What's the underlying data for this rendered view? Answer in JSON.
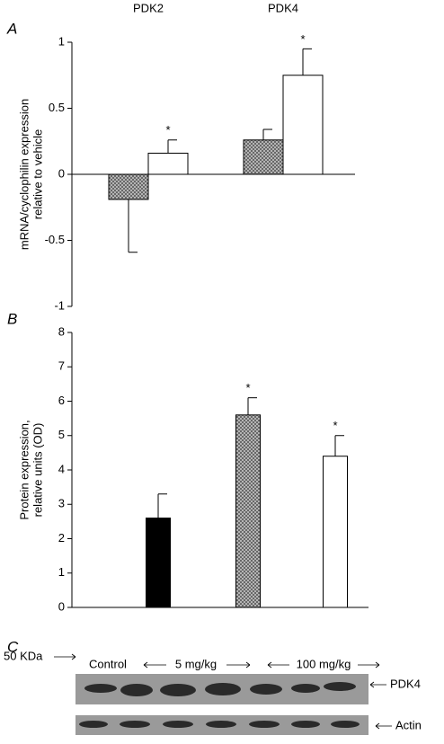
{
  "chart_data": [
    {
      "type": "bar",
      "panel": "A",
      "categories": [
        "PDK2",
        "PDK4"
      ],
      "ylabel": [
        "mRNA/cyclophilin expression",
        "relative to vehicle"
      ],
      "series": [
        {
          "color": "#9a9a9a",
          "pattern": "crosshatch",
          "values": [
            -0.19,
            0.26
          ],
          "errors": [
            0.4,
            0.08
          ]
        },
        {
          "color": "#ffffff",
          "pattern": null,
          "values": [
            0.16,
            0.75
          ],
          "errors": [
            0.1,
            0.2
          ],
          "annotations": [
            "*",
            "*"
          ]
        }
      ],
      "ylim": [
        -1,
        1
      ],
      "yticks": [
        -1,
        -0.5,
        0,
        0.5,
        1
      ]
    },
    {
      "type": "bar",
      "panel": "B",
      "ylabel": [
        "Protein expression,",
        "relative units (OD)"
      ],
      "values": [
        2.6,
        5.6,
        4.4
      ],
      "errors": [
        0.7,
        0.5,
        0.6
      ],
      "colors": [
        "#000000",
        "#9a9a9a",
        "#ffffff"
      ],
      "patterns": [
        null,
        "crosshatch",
        null
      ],
      "annotations": [
        null,
        "*",
        "*"
      ],
      "ylim": [
        0,
        8
      ],
      "yticks": [
        0,
        1,
        2,
        3,
        4,
        5,
        6,
        7,
        8
      ]
    }
  ],
  "blot": {
    "panel": "C",
    "lanes": [
      "Control",
      "5 mg/kg",
      "100 mg/kg"
    ],
    "marker": "50 KDa",
    "bands": [
      "PDK4",
      "Actin"
    ]
  }
}
